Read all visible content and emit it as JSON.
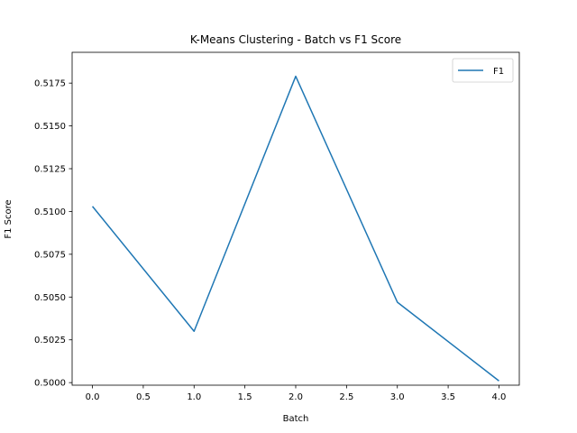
{
  "chart_data": {
    "type": "line",
    "title": "K-Means Clustering - Batch vs F1 Score",
    "xlabel": "Batch",
    "ylabel": "F1 Score",
    "xlim": [
      -0.2,
      4.2
    ],
    "ylim": [
      0.49985,
      0.5193
    ],
    "x_ticks": [
      0.0,
      0.5,
      1.0,
      1.5,
      2.0,
      2.5,
      3.0,
      3.5,
      4.0
    ],
    "x_tick_labels": [
      "0.0",
      "0.5",
      "1.0",
      "1.5",
      "2.0",
      "2.5",
      "3.0",
      "3.5",
      "4.0"
    ],
    "y_ticks": [
      0.5,
      0.5025,
      0.505,
      0.5075,
      0.51,
      0.5125,
      0.515,
      0.5175
    ],
    "y_tick_labels": [
      "0.5000",
      "0.5025",
      "0.5050",
      "0.5075",
      "0.5100",
      "0.5125",
      "0.5150",
      "0.5175"
    ],
    "grid": false,
    "legend_position": "top-right",
    "series": [
      {
        "name": "F1",
        "color": "#1f77b4",
        "x": [
          0,
          1,
          2,
          3,
          4
        ],
        "y": [
          0.5103,
          0.503,
          0.5179,
          0.5047,
          0.5001
        ]
      }
    ]
  }
}
